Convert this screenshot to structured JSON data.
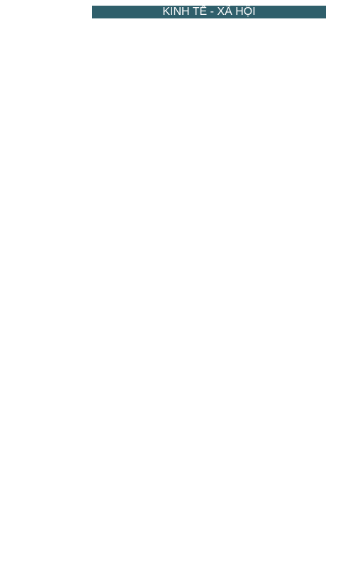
{
  "title": "KINH TẾ - XÃ HỘI"
}
